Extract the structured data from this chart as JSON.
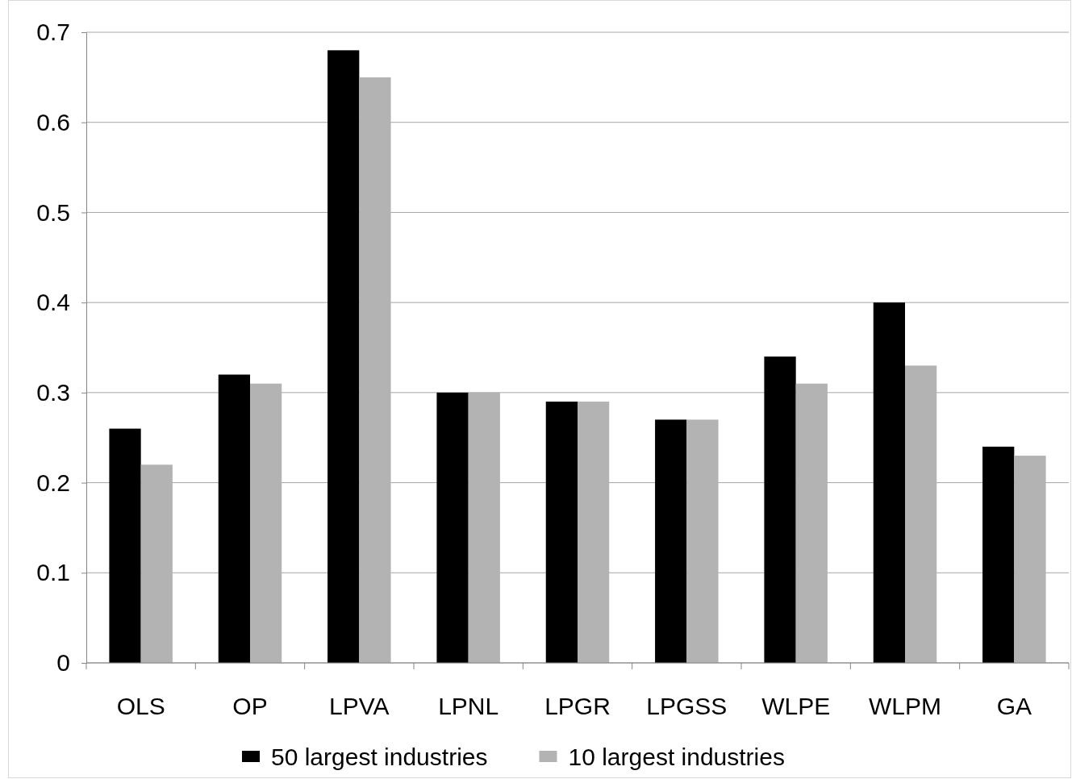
{
  "chart_data": {
    "type": "bar",
    "categories": [
      "OLS",
      "OP",
      "LPVA",
      "LPNL",
      "LPGR",
      "LPGSS",
      "WLPE",
      "WLPM",
      "GA"
    ],
    "series": [
      {
        "name": "50 largest industries",
        "color": "#000000",
        "values": [
          0.26,
          0.32,
          0.68,
          0.3,
          0.29,
          0.27,
          0.34,
          0.4,
          0.24
        ]
      },
      {
        "name": "10 largest industries",
        "color": "#b3b3b3",
        "values": [
          0.22,
          0.31,
          0.65,
          0.3,
          0.29,
          0.27,
          0.31,
          0.33,
          0.23
        ]
      }
    ],
    "ylim": [
      0,
      0.7
    ],
    "yticks": [
      0,
      0.1,
      0.2,
      0.3,
      0.4,
      0.5,
      0.6,
      0.7
    ],
    "grid": "y",
    "legend": "bottom"
  }
}
